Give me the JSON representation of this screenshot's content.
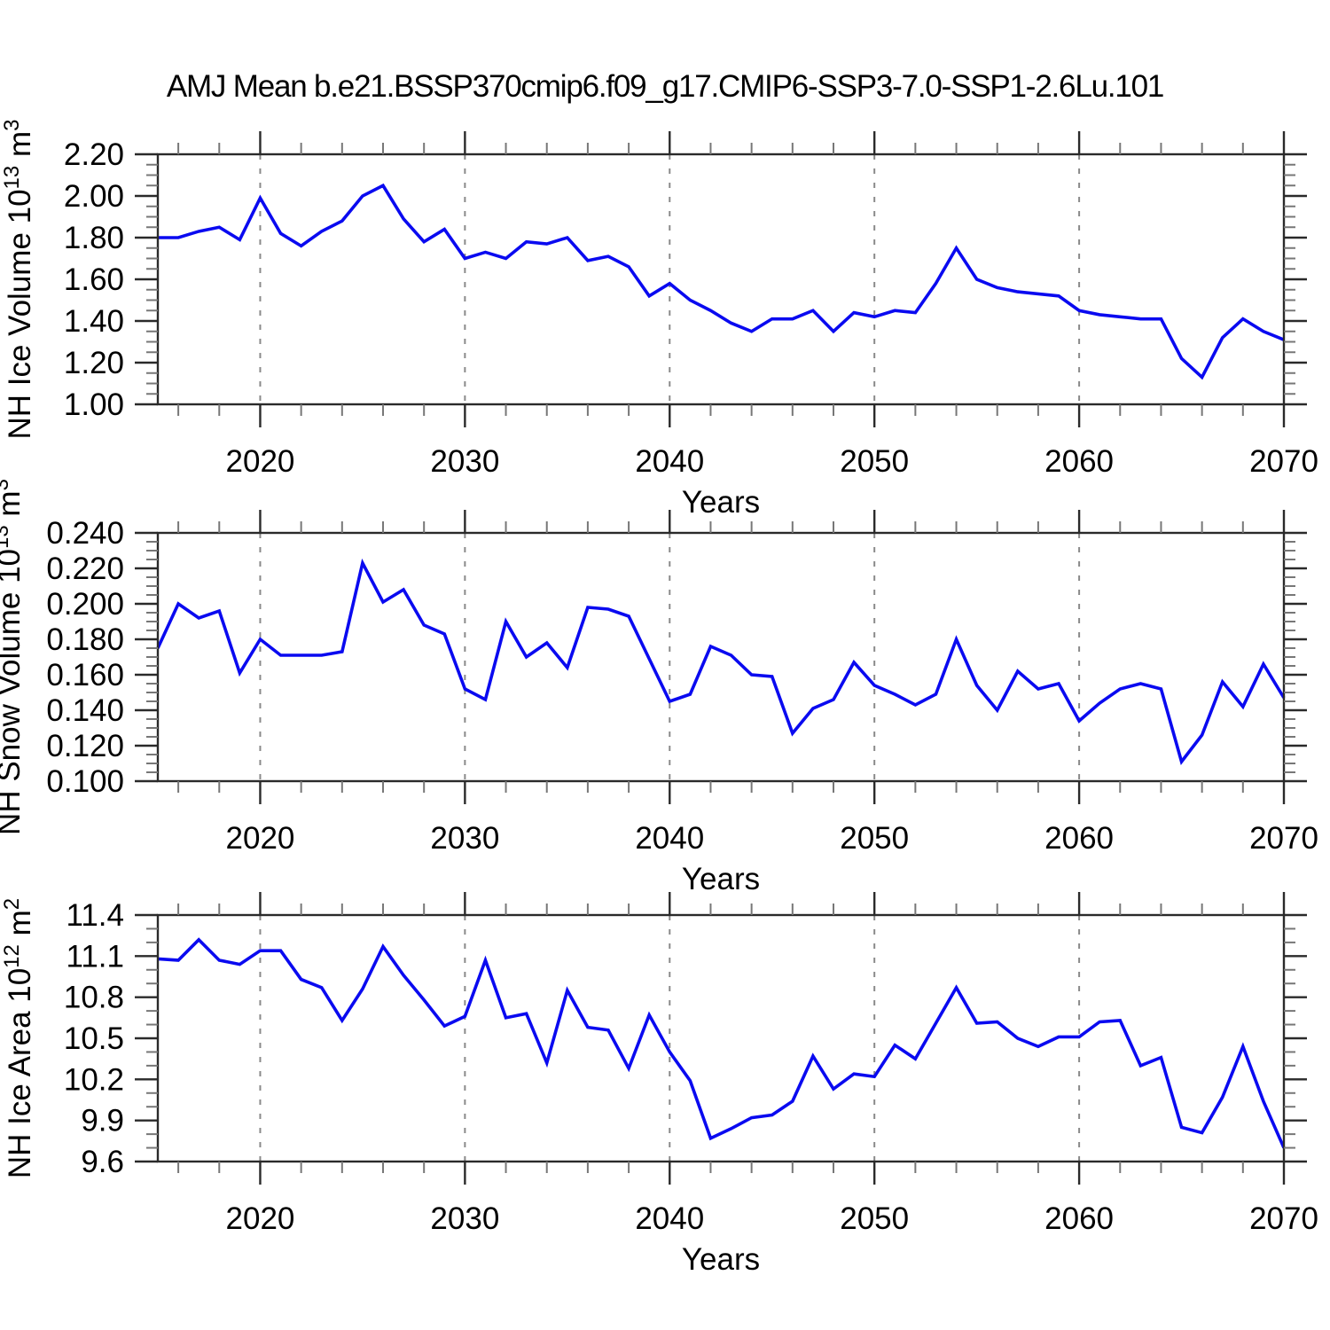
{
  "title": "AMJ Mean b.e21.BSSP370cmip6.f09_g17.CMIP6-SSP3-7.0-SSP1-2.6Lu.101",
  "x_label": "Years",
  "colors": {
    "line": "#0a0af0",
    "grid": "#8a8a8a",
    "axis": "#2a2a2a",
    "minor_tick": "#777777",
    "text": "#000000"
  },
  "chart_data": [
    {
      "type": "line",
      "panel": "nh-ice-volume",
      "ylabel_text": "NH Ice Volume 10^13 m^3",
      "ylabel_parts": {
        "base1": "NH Ice Volume 10",
        "sup1": "13",
        "base2": " m",
        "sup2": "3"
      },
      "xlabel": "Years",
      "x": {
        "start": 2015,
        "end": 2070,
        "step": 1
      },
      "x_major_ticks": [
        2020,
        2030,
        2040,
        2050,
        2060,
        2070
      ],
      "x_tick_labels": [
        "2020",
        "2030",
        "2040",
        "2050",
        "2060",
        "2070"
      ],
      "x_minor_step": 2,
      "grid_decades": [
        2020,
        2030,
        2040,
        2050,
        2060
      ],
      "ylim": [
        1.0,
        2.2
      ],
      "ytick_values": [
        2.2,
        2.0,
        1.8,
        1.6,
        1.4,
        1.2,
        1.0
      ],
      "ytick_labels": [
        "2.20",
        "2.00",
        "1.80",
        "1.60",
        "1.40",
        "1.20",
        "1.00"
      ],
      "y_minor_step": 0.05,
      "values": [
        1.8,
        1.8,
        1.83,
        1.85,
        1.79,
        1.99,
        1.82,
        1.76,
        1.83,
        1.88,
        2.0,
        2.05,
        1.89,
        1.78,
        1.84,
        1.7,
        1.73,
        1.7,
        1.78,
        1.77,
        1.8,
        1.69,
        1.71,
        1.66,
        1.52,
        1.58,
        1.5,
        1.45,
        1.39,
        1.35,
        1.41,
        1.41,
        1.45,
        1.35,
        1.44,
        1.42,
        1.45,
        1.44,
        1.58,
        1.75,
        1.6,
        1.56,
        1.54,
        1.53,
        1.52,
        1.45,
        1.43,
        1.42,
        1.41,
        1.41,
        1.22,
        1.13,
        1.32,
        1.41,
        1.35,
        1.31
      ]
    },
    {
      "type": "line",
      "panel": "nh-snow-volume",
      "ylabel_text": "NH Snow Volume 10^13 m^3",
      "ylabel_parts": {
        "base1": "NH Snow Volume 10",
        "sup1": "13",
        "base2": " m",
        "sup2": "3"
      },
      "xlabel": "Years",
      "x": {
        "start": 2015,
        "end": 2070,
        "step": 1
      },
      "x_major_ticks": [
        2020,
        2030,
        2040,
        2050,
        2060,
        2070
      ],
      "x_tick_labels": [
        "2020",
        "2030",
        "2040",
        "2050",
        "2060",
        "2070"
      ],
      "x_minor_step": 2,
      "grid_decades": [
        2020,
        2030,
        2040,
        2050,
        2060
      ],
      "ylim": [
        0.1,
        0.24
      ],
      "ytick_values": [
        0.24,
        0.22,
        0.2,
        0.18,
        0.16,
        0.14,
        0.12,
        0.1
      ],
      "ytick_labels": [
        "0.240",
        "0.220",
        "0.200",
        "0.180",
        "0.160",
        "0.140",
        "0.120",
        "0.100"
      ],
      "y_minor_step": 0.005,
      "values": [
        0.175,
        0.2,
        0.192,
        0.196,
        0.161,
        0.18,
        0.171,
        0.171,
        0.171,
        0.173,
        0.223,
        0.201,
        0.208,
        0.188,
        0.183,
        0.152,
        0.146,
        0.19,
        0.17,
        0.178,
        0.164,
        0.198,
        0.197,
        0.193,
        0.169,
        0.145,
        0.149,
        0.176,
        0.171,
        0.16,
        0.159,
        0.127,
        0.141,
        0.146,
        0.167,
        0.154,
        0.149,
        0.143,
        0.149,
        0.18,
        0.154,
        0.14,
        0.162,
        0.152,
        0.155,
        0.134,
        0.144,
        0.152,
        0.155,
        0.152,
        0.111,
        0.126,
        0.156,
        0.142,
        0.166,
        0.147
      ]
    },
    {
      "type": "line",
      "panel": "nh-ice-area",
      "ylabel_text": "NH Ice Area 10^12 m^2",
      "ylabel_parts": {
        "base1": "NH Ice Area 10",
        "sup1": "12",
        "base2": " m",
        "sup2": "2"
      },
      "xlabel": "Years",
      "x": {
        "start": 2015,
        "end": 2070,
        "step": 1
      },
      "x_major_ticks": [
        2020,
        2030,
        2040,
        2050,
        2060,
        2070
      ],
      "x_tick_labels": [
        "2020",
        "2030",
        "2040",
        "2050",
        "2060",
        "2070"
      ],
      "x_minor_step": 2,
      "grid_decades": [
        2020,
        2030,
        2040,
        2050,
        2060
      ],
      "ylim": [
        9.6,
        11.4
      ],
      "ytick_values": [
        11.4,
        11.1,
        10.8,
        10.5,
        10.2,
        9.9,
        9.6
      ],
      "ytick_labels": [
        "11.4",
        "11.1",
        "10.8",
        "10.5",
        "10.2",
        "9.9",
        "9.6"
      ],
      "y_minor_step": 0.1,
      "values": [
        11.08,
        11.07,
        11.22,
        11.07,
        11.04,
        11.14,
        11.14,
        10.93,
        10.87,
        10.63,
        10.86,
        11.17,
        10.96,
        10.78,
        10.59,
        10.66,
        11.07,
        10.65,
        10.68,
        10.32,
        10.85,
        10.58,
        10.56,
        10.28,
        10.67,
        10.4,
        10.19,
        9.77,
        9.84,
        9.92,
        9.94,
        10.04,
        10.37,
        10.13,
        10.24,
        10.22,
        10.45,
        10.35,
        10.61,
        10.87,
        10.61,
        10.62,
        10.5,
        10.44,
        10.51,
        10.51,
        10.62,
        10.63,
        10.3,
        10.36,
        9.85,
        9.81,
        10.07,
        10.44,
        10.04,
        9.7
      ]
    }
  ]
}
